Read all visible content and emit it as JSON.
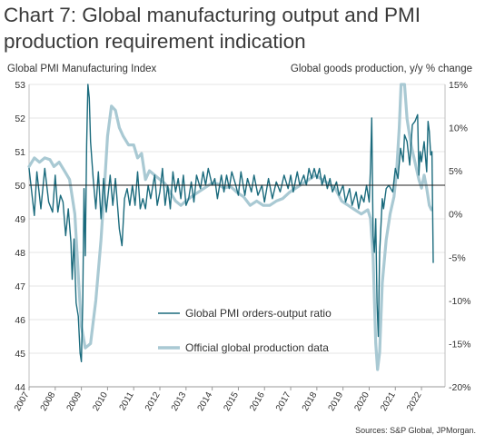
{
  "chart_data": {
    "type": "line",
    "title": "Chart 7: Global manufacturing output and PMI production requirement indication",
    "left_axis": {
      "label": "Global PMI Manufacturing Index",
      "range": [
        44,
        53
      ],
      "ticks": [
        44,
        45,
        46,
        47,
        48,
        49,
        50,
        51,
        52,
        53
      ]
    },
    "right_axis": {
      "label": "Global goods production, y/y  % change",
      "range": [
        -20,
        15
      ],
      "ticks": [
        "15%",
        "10%",
        "5%",
        "0%",
        "-5%",
        "-10%",
        "-15%",
        "-20%"
      ]
    },
    "x_ticks": [
      "2007",
      "2008",
      "2009",
      "2010",
      "2011",
      "2012",
      "2013",
      "2014",
      "2015",
      "2016",
      "2017",
      "2018",
      "2019",
      "2020",
      "2021",
      "2022"
    ],
    "x_range": [
      2007,
      2022.9
    ],
    "reference_line": 50,
    "legend_position": "lower-center",
    "source": "Sources: S&P Global, JPMorgan.",
    "colors": {
      "orders_output": "#1b6b7d",
      "official": "#a9c9d3"
    },
    "series": [
      {
        "name": "Global PMI orders-output ratio",
        "axis": "left",
        "color": "#1b6b7d",
        "points": [
          [
            2007.0,
            50.5
          ],
          [
            2007.1,
            49.8
          ],
          [
            2007.2,
            49.1
          ],
          [
            2007.3,
            50.4
          ],
          [
            2007.45,
            49.3
          ],
          [
            2007.6,
            50.5
          ],
          [
            2007.75,
            49.5
          ],
          [
            2007.9,
            49.2
          ],
          [
            2008.0,
            50.3
          ],
          [
            2008.1,
            49.2
          ],
          [
            2008.2,
            49.7
          ],
          [
            2008.3,
            49.5
          ],
          [
            2008.4,
            48.5
          ],
          [
            2008.5,
            49.3
          ],
          [
            2008.6,
            48.3
          ],
          [
            2008.65,
            47.2
          ],
          [
            2008.72,
            48.4
          ],
          [
            2008.8,
            46.5
          ],
          [
            2008.88,
            46.1
          ],
          [
            2008.95,
            45.0
          ],
          [
            2009.0,
            44.75
          ],
          [
            2009.05,
            46.5
          ],
          [
            2009.1,
            49.9
          ],
          [
            2009.15,
            47.9
          ],
          [
            2009.2,
            51.2
          ],
          [
            2009.25,
            53.0
          ],
          [
            2009.3,
            52.6
          ],
          [
            2009.35,
            51.3
          ],
          [
            2009.45,
            50.2
          ],
          [
            2009.55,
            49.3
          ],
          [
            2009.65,
            50.4
          ],
          [
            2009.75,
            49.0
          ],
          [
            2009.85,
            50.2
          ],
          [
            2009.95,
            49.2
          ],
          [
            2010.1,
            50.3
          ],
          [
            2010.2,
            49.4
          ],
          [
            2010.3,
            50.2
          ],
          [
            2010.45,
            48.7
          ],
          [
            2010.55,
            48.2
          ],
          [
            2010.65,
            49.6
          ],
          [
            2010.75,
            49.9
          ],
          [
            2010.85,
            49.4
          ],
          [
            2010.95,
            50.0
          ],
          [
            2011.05,
            49.4
          ],
          [
            2011.15,
            50.4
          ],
          [
            2011.25,
            49.3
          ],
          [
            2011.35,
            49.6
          ],
          [
            2011.45,
            49.3
          ],
          [
            2011.55,
            50.0
          ],
          [
            2011.65,
            49.6
          ],
          [
            2011.8,
            50.3
          ],
          [
            2011.9,
            49.4
          ],
          [
            2012.0,
            49.8
          ],
          [
            2012.1,
            50.5
          ],
          [
            2012.2,
            49.4
          ],
          [
            2012.3,
            50.0
          ],
          [
            2012.4,
            49.3
          ],
          [
            2012.5,
            50.4
          ],
          [
            2012.6,
            49.8
          ],
          [
            2012.7,
            50.2
          ],
          [
            2012.8,
            49.6
          ],
          [
            2012.9,
            50.3
          ],
          [
            2013.0,
            49.4
          ],
          [
            2013.1,
            49.6
          ],
          [
            2013.2,
            50.1
          ],
          [
            2013.3,
            49.5
          ],
          [
            2013.4,
            50.3
          ],
          [
            2013.55,
            49.9
          ],
          [
            2013.65,
            50.4
          ],
          [
            2013.75,
            50.0
          ],
          [
            2013.85,
            50.5
          ],
          [
            2014.0,
            50.0
          ],
          [
            2014.1,
            50.2
          ],
          [
            2014.2,
            49.6
          ],
          [
            2014.35,
            50.3
          ],
          [
            2014.45,
            49.8
          ],
          [
            2014.55,
            50.3
          ],
          [
            2014.65,
            49.9
          ],
          [
            2014.75,
            50.4
          ],
          [
            2014.9,
            50.0
          ],
          [
            2015.0,
            49.7
          ],
          [
            2015.1,
            50.4
          ],
          [
            2015.25,
            49.7
          ],
          [
            2015.35,
            50.2
          ],
          [
            2015.5,
            49.8
          ],
          [
            2015.6,
            50.3
          ],
          [
            2015.75,
            49.7
          ],
          [
            2015.9,
            50.0
          ],
          [
            2016.0,
            49.5
          ],
          [
            2016.15,
            50.2
          ],
          [
            2016.3,
            49.6
          ],
          [
            2016.45,
            50.1
          ],
          [
            2016.6,
            49.8
          ],
          [
            2016.75,
            50.3
          ],
          [
            2016.9,
            49.9
          ],
          [
            2017.0,
            50.3
          ],
          [
            2017.1,
            49.8
          ],
          [
            2017.25,
            50.4
          ],
          [
            2017.35,
            50.0
          ],
          [
            2017.5,
            50.3
          ],
          [
            2017.6,
            50.0
          ],
          [
            2017.7,
            50.5
          ],
          [
            2017.8,
            50.2
          ],
          [
            2017.9,
            50.5
          ],
          [
            2018.0,
            50.2
          ],
          [
            2018.1,
            50.5
          ],
          [
            2018.2,
            50.0
          ],
          [
            2018.3,
            50.3
          ],
          [
            2018.4,
            49.9
          ],
          [
            2018.5,
            50.2
          ],
          [
            2018.6,
            49.8
          ],
          [
            2018.75,
            50.1
          ],
          [
            2018.85,
            49.7
          ],
          [
            2019.0,
            50.0
          ],
          [
            2019.1,
            49.5
          ],
          [
            2019.25,
            49.9
          ],
          [
            2019.35,
            49.4
          ],
          [
            2019.5,
            49.8
          ],
          [
            2019.6,
            49.3
          ],
          [
            2019.7,
            49.7
          ],
          [
            2019.8,
            49.5
          ],
          [
            2019.9,
            50.0
          ],
          [
            2020.0,
            49.5
          ],
          [
            2020.05,
            50.5
          ],
          [
            2020.1,
            52.0
          ],
          [
            2020.15,
            48.5
          ],
          [
            2020.2,
            48.0
          ],
          [
            2020.25,
            49.0
          ],
          [
            2020.3,
            46.5
          ],
          [
            2020.35,
            45.5
          ],
          [
            2020.4,
            48.0
          ],
          [
            2020.5,
            49.6
          ],
          [
            2020.55,
            49.3
          ],
          [
            2020.65,
            49.9
          ],
          [
            2020.75,
            50.0
          ],
          [
            2020.9,
            49.8
          ],
          [
            2021.0,
            50.5
          ],
          [
            2021.1,
            50.2
          ],
          [
            2021.2,
            51.1
          ],
          [
            2021.3,
            50.7
          ],
          [
            2021.35,
            51.5
          ],
          [
            2021.45,
            51.3
          ],
          [
            2021.55,
            50.6
          ],
          [
            2021.65,
            51.8
          ],
          [
            2021.75,
            51.9
          ],
          [
            2021.85,
            52.1
          ],
          [
            2021.9,
            50.3
          ],
          [
            2021.95,
            51.0
          ],
          [
            2022.0,
            50.7
          ],
          [
            2022.1,
            51.3
          ],
          [
            2022.2,
            50.4
          ],
          [
            2022.25,
            51.9
          ],
          [
            2022.3,
            51.6
          ],
          [
            2022.35,
            50.9
          ],
          [
            2022.4,
            51.0
          ],
          [
            2022.45,
            47.7
          ]
        ]
      },
      {
        "name": "Official global production data",
        "axis": "right",
        "color": "#a9c9d3",
        "points": [
          [
            2007.0,
            5.5
          ],
          [
            2007.2,
            6.5
          ],
          [
            2007.4,
            6.0
          ],
          [
            2007.6,
            6.5
          ],
          [
            2007.8,
            6.3
          ],
          [
            2007.95,
            5.5
          ],
          [
            2008.15,
            6.0
          ],
          [
            2008.35,
            5.0
          ],
          [
            2008.55,
            4.0
          ],
          [
            2008.75,
            0.0
          ],
          [
            2008.9,
            -8.0
          ],
          [
            2009.0,
            -13.0
          ],
          [
            2009.15,
            -15.5
          ],
          [
            2009.35,
            -15.0
          ],
          [
            2009.55,
            -10.0
          ],
          [
            2009.75,
            -3.0
          ],
          [
            2009.9,
            4.0
          ],
          [
            2010.0,
            9.0
          ],
          [
            2010.15,
            12.5
          ],
          [
            2010.3,
            12.0
          ],
          [
            2010.45,
            10.0
          ],
          [
            2010.6,
            9.0
          ],
          [
            2010.8,
            8.0
          ],
          [
            2011.0,
            8.0
          ],
          [
            2011.15,
            6.5
          ],
          [
            2011.3,
            7.0
          ],
          [
            2011.45,
            4.0
          ],
          [
            2011.6,
            5.0
          ],
          [
            2011.8,
            4.5
          ],
          [
            2012.0,
            4.0
          ],
          [
            2012.2,
            3.5
          ],
          [
            2012.4,
            2.5
          ],
          [
            2012.6,
            1.5
          ],
          [
            2012.8,
            1.0
          ],
          [
            2013.0,
            1.5
          ],
          [
            2013.2,
            2.0
          ],
          [
            2013.45,
            2.5
          ],
          [
            2013.7,
            3.0
          ],
          [
            2013.95,
            3.5
          ],
          [
            2014.2,
            3.5
          ],
          [
            2014.45,
            3.0
          ],
          [
            2014.7,
            3.2
          ],
          [
            2014.95,
            2.5
          ],
          [
            2015.2,
            2.0
          ],
          [
            2015.45,
            1.0
          ],
          [
            2015.7,
            1.5
          ],
          [
            2015.95,
            1.0
          ],
          [
            2016.2,
            1.0
          ],
          [
            2016.45,
            1.5
          ],
          [
            2016.7,
            1.8
          ],
          [
            2016.95,
            2.5
          ],
          [
            2017.2,
            3.0
          ],
          [
            2017.45,
            3.5
          ],
          [
            2017.7,
            4.0
          ],
          [
            2017.95,
            4.5
          ],
          [
            2018.2,
            4.0
          ],
          [
            2018.45,
            3.5
          ],
          [
            2018.7,
            3.0
          ],
          [
            2018.95,
            1.5
          ],
          [
            2019.2,
            1.0
          ],
          [
            2019.45,
            0.5
          ],
          [
            2019.7,
            0.0
          ],
          [
            2019.95,
            0.5
          ],
          [
            2020.05,
            -0.5
          ],
          [
            2020.15,
            -5.0
          ],
          [
            2020.25,
            -15.0
          ],
          [
            2020.32,
            -18.0
          ],
          [
            2020.4,
            -16.0
          ],
          [
            2020.5,
            -8.0
          ],
          [
            2020.65,
            -3.0
          ],
          [
            2020.8,
            0.0
          ],
          [
            2020.95,
            2.0
          ],
          [
            2021.05,
            5.0
          ],
          [
            2021.15,
            10.0
          ],
          [
            2021.22,
            15.0
          ],
          [
            2021.35,
            15.0
          ],
          [
            2021.45,
            11.0
          ],
          [
            2021.6,
            8.0
          ],
          [
            2021.75,
            6.0
          ],
          [
            2021.9,
            4.0
          ],
          [
            2022.0,
            3.0
          ],
          [
            2022.1,
            4.5
          ],
          [
            2022.2,
            3.0
          ],
          [
            2022.3,
            1.0
          ],
          [
            2022.38,
            0.5
          ]
        ]
      }
    ]
  }
}
